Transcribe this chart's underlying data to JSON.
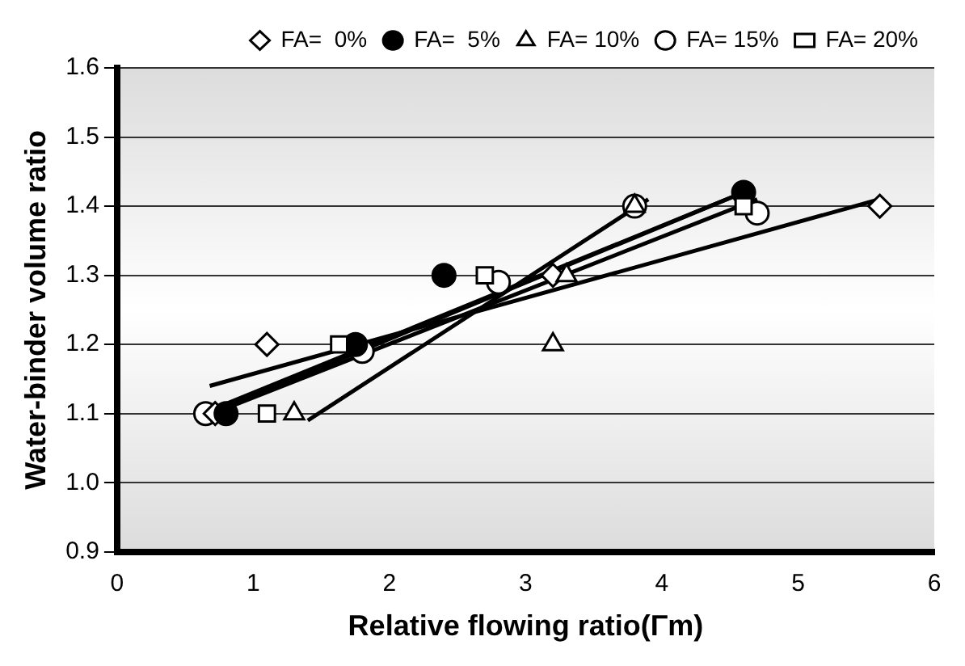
{
  "chart_data": {
    "type": "scatter",
    "xlabel": "Relative flowing ratio(Γm)",
    "ylabel": "Water-binder volume ratio",
    "xlim": [
      0,
      6
    ],
    "xticks": [
      0,
      1,
      2,
      3,
      4,
      5,
      6
    ],
    "ylim": [
      0.9,
      1.6
    ],
    "yticks": [
      {
        "value": 0.9,
        "label": "0.9"
      },
      {
        "value": 1.0,
        "label": "1.0"
      },
      {
        "value": 1.1,
        "label": "1.1"
      },
      {
        "value": 1.2,
        "label": "1.2"
      },
      {
        "value": 1.3,
        "label": "1.3"
      },
      {
        "value": 1.4,
        "label": "1.4"
      },
      {
        "value": 1.5,
        "label": "1.5"
      },
      {
        "value": 1.6,
        "label": "1.6"
      }
    ],
    "grid": "y",
    "legend": "top right",
    "series": [
      {
        "name": "FA=  0%",
        "color": "#ffffff",
        "marker": "diamond",
        "x": [
          0.72,
          1.1,
          3.2,
          5.6
        ],
        "values": [
          1.1,
          1.2,
          1.3,
          1.4
        ]
      },
      {
        "name": "FA=  5%",
        "color": "#000000",
        "marker": "circle",
        "x": [
          0.8,
          1.75,
          2.4,
          4.6
        ],
        "values": [
          1.1,
          1.2,
          1.3,
          1.42
        ]
      },
      {
        "name": "FA= 10%",
        "color": "#ffffff",
        "marker": "triangle",
        "x": [
          1.3,
          3.2,
          3.3,
          3.8
        ],
        "values": [
          1.1,
          1.2,
          1.3,
          1.4
        ]
      },
      {
        "name": "FA= 15%",
        "color": "#ffffff",
        "marker": "circle",
        "x": [
          0.65,
          1.8,
          2.8,
          3.8,
          4.7
        ],
        "values": [
          1.1,
          1.19,
          1.29,
          1.4,
          1.39
        ]
      },
      {
        "name": "FA= 20%",
        "color": "#ffffff",
        "marker": "square",
        "x": [
          1.1,
          1.63,
          2.7,
          4.6
        ],
        "values": [
          1.1,
          1.2,
          1.3,
          1.4
        ]
      },
      {
        "type": "line",
        "color": "#000000",
        "marker": "none",
        "x": [
          0.68,
          5.6
        ],
        "values": [
          1.14,
          1.41
        ]
      },
      {
        "type": "line",
        "color": "#000000",
        "marker": "none",
        "x": [
          0.75,
          4.6
        ],
        "values": [
          1.11,
          1.42
        ]
      },
      {
        "type": "line",
        "color": "#000000",
        "marker": "none",
        "x": [
          1.4,
          3.9
        ],
        "values": [
          1.09,
          1.41
        ]
      },
      {
        "type": "line",
        "color": "#000000",
        "marker": "none",
        "x": [
          0.7,
          4.7
        ],
        "values": [
          1.1,
          1.41
        ]
      },
      {
        "type": "line",
        "color": "#000000",
        "marker": "none",
        "x": [
          0.8,
          4.6
        ],
        "values": [
          1.11,
          1.42
        ]
      }
    ]
  }
}
